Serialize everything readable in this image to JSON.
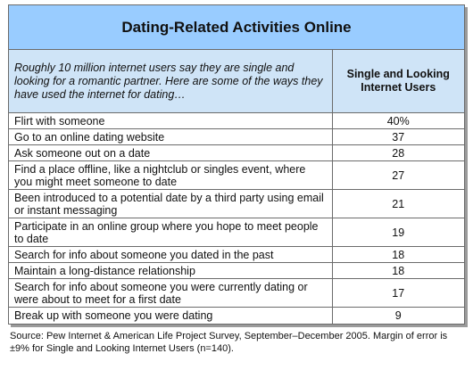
{
  "title": "Dating-Related Activities Online",
  "intro": "Roughly 10 million internet users say they are single and looking for a romantic partner. Here are some of the ways they have used the internet for dating…",
  "column_header": "Single and Looking Internet Users",
  "rows": [
    {
      "activity": "Flirt with someone",
      "value": "40%"
    },
    {
      "activity": "Go to an online dating website",
      "value": "37"
    },
    {
      "activity": "Ask someone out on a date",
      "value": "28"
    },
    {
      "activity": "Find a place offline, like a nightclub or singles event, where you might meet someone to date",
      "value": "27"
    },
    {
      "activity": "Been introduced to a potential date by a third party using email or instant messaging",
      "value": "21"
    },
    {
      "activity": "Participate in an online group where you hope to meet people to date",
      "value": "19"
    },
    {
      "activity": "Search for info about someone you dated in the past",
      "value": "18"
    },
    {
      "activity": "Maintain a long-distance relationship",
      "value": "18"
    },
    {
      "activity": "Search for info about someone you were currently dating or were about to meet for a first date",
      "value": "17"
    },
    {
      "activity": "Break up with someone you were dating",
      "value": "9"
    }
  ],
  "source": "Source: Pew Internet & American Life Project Survey, September–December 2005.  Margin of error is ±9% for Single and Looking Internet Users (n=140).",
  "colors": {
    "title_bg": "#99ccff",
    "header_bg": "#cfe4f7",
    "border": "#6b6b6b"
  }
}
